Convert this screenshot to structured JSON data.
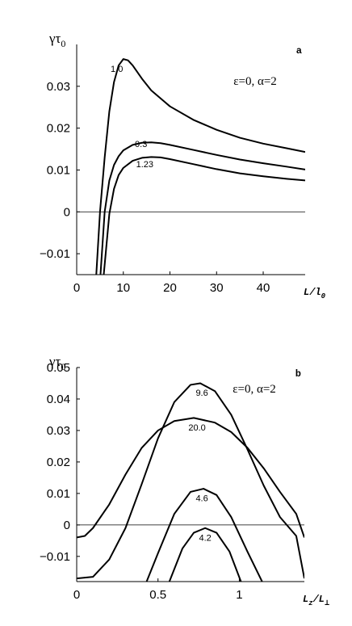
{
  "chart_data": [
    {
      "type": "line",
      "panel_label": "a",
      "annotation": "ε=0, α=2",
      "ylabel": "γτ",
      "ylabel_sub": "0",
      "xlabel": "L/l",
      "xlabel_sub": "0",
      "xlim": [
        0,
        49
      ],
      "ylim": [
        -0.015,
        0.04
      ],
      "xticks": [
        0,
        10,
        20,
        30,
        40
      ],
      "xtick_labels": [
        "0",
        "10",
        "20",
        "30",
        "40"
      ],
      "yticks": [
        -0.01,
        0,
        0.01,
        0.02,
        0.03
      ],
      "ytick_labels": [
        "−0.01",
        "0",
        "0.01",
        "0.02",
        "0.03"
      ],
      "zero_line": true,
      "grid": false,
      "series": [
        {
          "name": "1.0",
          "points": [
            [
              4.2,
              -0.015
            ],
            [
              5,
              0
            ],
            [
              6,
              0.013
            ],
            [
              7,
              0.024
            ],
            [
              8,
              0.031
            ],
            [
              9,
              0.035
            ],
            [
              10,
              0.0365
            ],
            [
              11,
              0.0362
            ],
            [
              12,
              0.035
            ],
            [
              14,
              0.0318
            ],
            [
              16,
              0.029
            ],
            [
              20,
              0.0252
            ],
            [
              25,
              0.022
            ],
            [
              30,
              0.0196
            ],
            [
              35,
              0.0177
            ],
            [
              40,
              0.0163
            ],
            [
              45,
              0.0152
            ],
            [
              49,
              0.0143
            ]
          ]
        },
        {
          "name": "0.3",
          "points": [
            [
              5.1,
              -0.015
            ],
            [
              6,
              0
            ],
            [
              7,
              0.0075
            ],
            [
              8,
              0.0112
            ],
            [
              9,
              0.0133
            ],
            [
              10,
              0.0147
            ],
            [
              12,
              0.016
            ],
            [
              14,
              0.0165
            ],
            [
              16,
              0.0166
            ],
            [
              18,
              0.0164
            ],
            [
              20,
              0.016
            ],
            [
              25,
              0.0148
            ],
            [
              30,
              0.0136
            ],
            [
              35,
              0.0125
            ],
            [
              40,
              0.0116
            ],
            [
              45,
              0.0108
            ],
            [
              49,
              0.0101
            ]
          ]
        },
        {
          "name": "1.23",
          "points": [
            [
              5.8,
              -0.015
            ],
            [
              7,
              -0.0005
            ],
            [
              8,
              0.0055
            ],
            [
              9,
              0.0088
            ],
            [
              10,
              0.0105
            ],
            [
              12,
              0.0122
            ],
            [
              14,
              0.0129
            ],
            [
              16,
              0.0131
            ],
            [
              18,
              0.013
            ],
            [
              20,
              0.0126
            ],
            [
              25,
              0.0114
            ],
            [
              30,
              0.0102
            ],
            [
              35,
              0.0092
            ],
            [
              40,
              0.0085
            ],
            [
              45,
              0.0079
            ],
            [
              49,
              0.0075
            ]
          ]
        }
      ],
      "curve_labels": [
        {
          "text": "1.0",
          "x": 8.6,
          "y": 0.0342
        },
        {
          "text": "0.3",
          "x": 13.8,
          "y": 0.0163
        },
        {
          "text": "1.23",
          "x": 14.6,
          "y": 0.0114
        }
      ]
    },
    {
      "type": "line",
      "panel_label": "b",
      "annotation": "ε=0, α=2",
      "ylabel": "γτ",
      "ylabel_sub": "0",
      "xlabel": "L",
      "xlabel_sub": "z",
      "xlabel_den": "L",
      "xlabel_den_sub": "⊥",
      "xlim": [
        0,
        1.4
      ],
      "ylim": [
        -0.018,
        0.05
      ],
      "xticks": [
        0,
        0.5,
        1
      ],
      "xtick_labels": [
        "0",
        "0.5",
        "1"
      ],
      "yticks": [
        -0.01,
        0,
        0.01,
        0.02,
        0.03,
        0.04,
        0.05
      ],
      "ytick_labels": [
        "−0.01",
        "0",
        "0.01",
        "0.02",
        "0.03",
        "0.04",
        "0.05"
      ],
      "zero_line": true,
      "grid": false,
      "series": [
        {
          "name": "9.6",
          "points": [
            [
              0,
              -0.017
            ],
            [
              0.1,
              -0.0165
            ],
            [
              0.2,
              -0.011
            ],
            [
              0.3,
              -0.001
            ],
            [
              0.4,
              0.013
            ],
            [
              0.5,
              0.0275
            ],
            [
              0.6,
              0.039
            ],
            [
              0.7,
              0.0445
            ],
            [
              0.76,
              0.045
            ],
            [
              0.85,
              0.0425
            ],
            [
              0.95,
              0.035
            ],
            [
              1.05,
              0.024
            ],
            [
              1.15,
              0.0125
            ],
            [
              1.25,
              0.0025
            ],
            [
              1.35,
              -0.0035
            ],
            [
              1.4,
              -0.017
            ]
          ]
        },
        {
          "name": "20.0",
          "points": [
            [
              0,
              -0.004
            ],
            [
              0.05,
              -0.0035
            ],
            [
              0.1,
              -0.001
            ],
            [
              0.2,
              0.0065
            ],
            [
              0.3,
              0.016
            ],
            [
              0.4,
              0.0245
            ],
            [
              0.5,
              0.03
            ],
            [
              0.6,
              0.033
            ],
            [
              0.72,
              0.034
            ],
            [
              0.85,
              0.0325
            ],
            [
              0.95,
              0.0295
            ],
            [
              1.05,
              0.0245
            ],
            [
              1.15,
              0.018
            ],
            [
              1.25,
              0.0105
            ],
            [
              1.35,
              0.0035
            ],
            [
              1.4,
              -0.004
            ]
          ]
        },
        {
          "name": "4.6",
          "points": [
            [
              0.43,
              -0.018
            ],
            [
              0.5,
              -0.009
            ],
            [
              0.6,
              0.0035
            ],
            [
              0.7,
              0.0105
            ],
            [
              0.78,
              0.0115
            ],
            [
              0.86,
              0.0095
            ],
            [
              0.95,
              0.0025
            ],
            [
              1.05,
              -0.0085
            ],
            [
              1.14,
              -0.018
            ]
          ]
        },
        {
          "name": "4.2",
          "points": [
            [
              0.57,
              -0.018
            ],
            [
              0.65,
              -0.0075
            ],
            [
              0.72,
              -0.0025
            ],
            [
              0.79,
              -0.001
            ],
            [
              0.86,
              -0.0025
            ],
            [
              0.94,
              -0.0085
            ],
            [
              1.01,
              -0.018
            ]
          ]
        }
      ],
      "curve_labels": [
        {
          "text": "9.6",
          "x": 0.77,
          "y": 0.042
        },
        {
          "text": "20.0",
          "x": 0.74,
          "y": 0.031
        },
        {
          "text": "4.6",
          "x": 0.77,
          "y": 0.0085
        },
        {
          "text": "4.2",
          "x": 0.79,
          "y": -0.004
        }
      ]
    }
  ]
}
